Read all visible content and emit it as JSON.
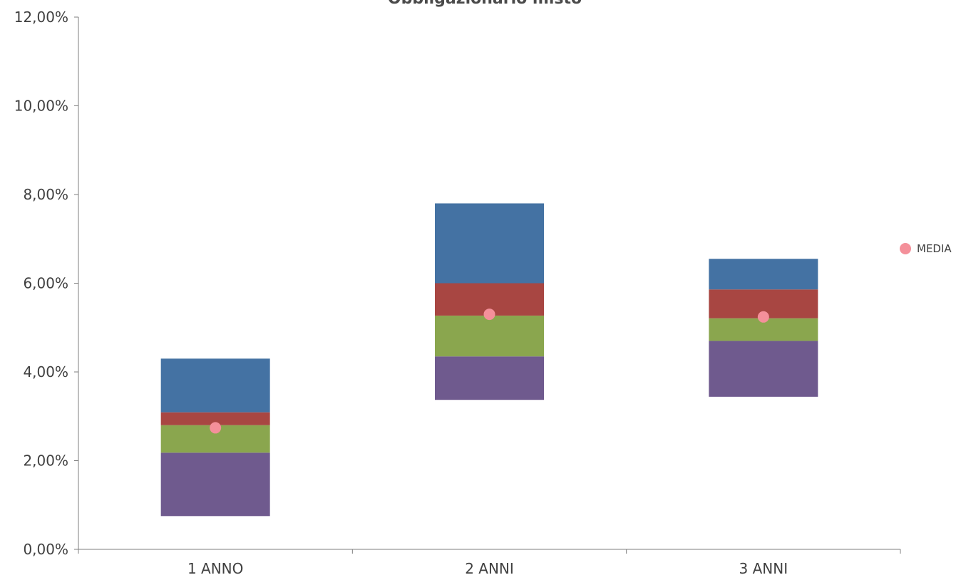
{
  "chart_data": {
    "type": "bar",
    "title": "Obbligazionario misto",
    "categories": [
      "1 ANNO",
      "2 ANNI",
      "3 ANNI"
    ],
    "y_ticks": [
      "0,00%",
      "2,00%",
      "4,00%",
      "6,00%",
      "8,00%",
      "10,00%",
      "12,00%"
    ],
    "ylim": [
      0,
      12
    ],
    "stacked": true,
    "grid": false,
    "legend_position": "right",
    "segments": [
      {
        "bottom": [
          0.75,
          3.37,
          3.44
        ],
        "top": [
          2.18,
          4.35,
          4.7
        ],
        "color": "#6f5a8e"
      },
      {
        "bottom": [
          2.18,
          4.35,
          4.7
        ],
        "top": [
          2.8,
          5.27,
          5.21
        ],
        "color": "#8aa64e"
      },
      {
        "bottom": [
          2.8,
          5.27,
          5.21
        ],
        "top": [
          3.09,
          6.0,
          5.86
        ],
        "color": "#a84642"
      },
      {
        "bottom": [
          3.09,
          6.0,
          5.86
        ],
        "top": [
          4.3,
          7.8,
          6.55
        ],
        "color": "#4472a3"
      }
    ],
    "series": [
      {
        "name": "MEDIA",
        "values": [
          2.74,
          5.3,
          5.24
        ],
        "color": "#f4909a",
        "marker": "circle"
      }
    ]
  }
}
